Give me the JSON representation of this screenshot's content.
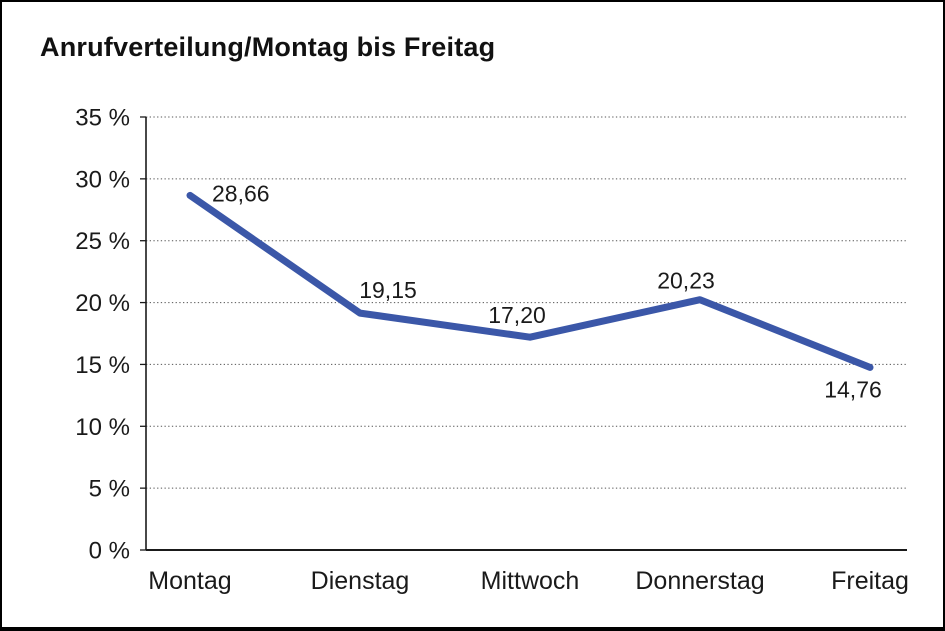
{
  "title": "Anrufverteilung/Montag bis Freitag",
  "chart_data": {
    "type": "line",
    "title": "Anrufverteilung/Montag bis Freitag",
    "categories": [
      "Montag",
      "Dienstag",
      "Mittwoch",
      "Donnerstag",
      "Freitag"
    ],
    "values": [
      28.66,
      19.15,
      17.2,
      20.23,
      14.76
    ],
    "point_labels": [
      "28,66",
      "19,15",
      "17,20",
      "20,23",
      "14,76"
    ],
    "xlabel": "",
    "ylabel": "",
    "ylim": [
      0,
      35
    ],
    "ytick_step": 5,
    "ytick_labels": [
      "0 %",
      "5 %",
      "10 %",
      "15 %",
      "20 %",
      "25 %",
      "30 %",
      "35 %"
    ],
    "grid": "horizontal-dotted",
    "legend_position": "none",
    "line_color": "#3B57A8",
    "grid_color": "#555555",
    "axis_color": "#1a1a1a",
    "text_color": "#1a1a1a"
  }
}
